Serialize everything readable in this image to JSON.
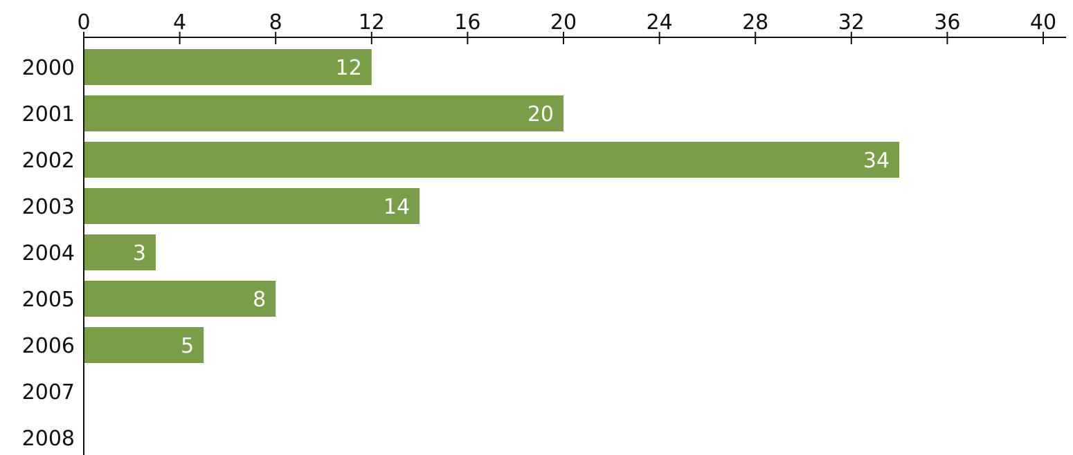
{
  "chart_data": {
    "type": "bar",
    "orientation": "horizontal",
    "categories": [
      "2000",
      "2001",
      "2002",
      "2003",
      "2004",
      "2005",
      "2006",
      "2007",
      "2008"
    ],
    "values": [
      12,
      20,
      34,
      14,
      3,
      8,
      5,
      0,
      0
    ],
    "data_labels": [
      "12",
      "20",
      "34",
      "14",
      "3",
      "8",
      "5",
      "",
      ""
    ],
    "title": "",
    "xlabel": "",
    "ylabel": "",
    "xlim": [
      0,
      40
    ],
    "x_ticks": [
      "0",
      "4",
      "8",
      "12",
      "16",
      "20",
      "24",
      "28",
      "32",
      "36",
      "40"
    ],
    "x_axis_position": "top",
    "grid": false,
    "legend": "none",
    "bar_color": "#7a9e48",
    "label_color": "#ffffff"
  }
}
